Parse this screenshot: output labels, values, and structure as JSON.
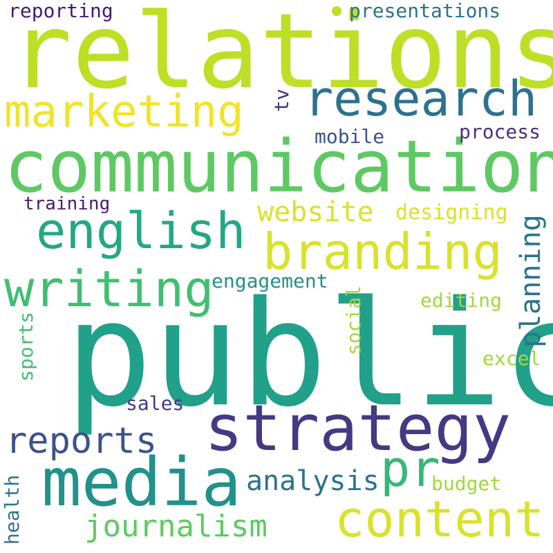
{
  "palette": {
    "lime": "#bddf26",
    "yellow": "#f0e42b",
    "yellow_lime": "#d9e22b",
    "green": "#5ec962",
    "light_green": "#a0d83e",
    "green_mid": "#41be71",
    "teal_green": "#35b779",
    "teal": "#21918c",
    "teal_light": "#22a884",
    "blue_teal": "#2c728e",
    "slate": "#3b528b",
    "indigo": "#443983",
    "deep_purple": "#481a6c",
    "dark_purple": "#46327e"
  },
  "words": {
    "relations": "relations",
    "communication": "communication",
    "public": "public",
    "strategy": "strategy",
    "media": "media",
    "marketing": "marketing",
    "research": "research",
    "english": "english",
    "branding": "branding",
    "writing": "writing",
    "content": "content",
    "reports": "reports",
    "pr": "pr",
    "journalism": "journalism",
    "analysis": "analysis",
    "website": "website",
    "planning": "planning",
    "designing": "designing",
    "engagement": "engagement",
    "editing": "editing",
    "social": "social",
    "excel": "excel",
    "sales": "sales",
    "budget": "budget",
    "health": "health",
    "sports": "sports",
    "training": "training",
    "mobile": "mobile",
    "process": "process",
    "tv": "tv",
    "reporting": "reporting",
    "presentations": "presentations"
  }
}
